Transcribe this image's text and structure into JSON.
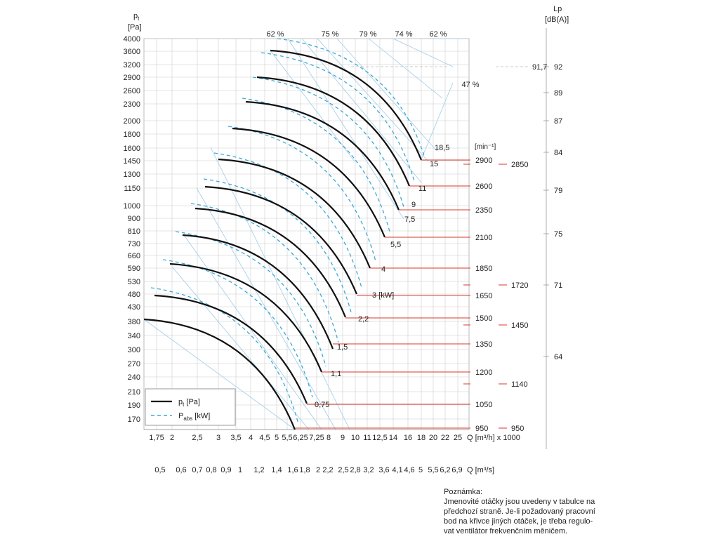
{
  "chart_data": {
    "type": "line",
    "y_axis": {
      "title_main": "p",
      "title_sub": "t",
      "unit": "[Pa]",
      "ticks": [
        4000,
        3600,
        3200,
        2900,
        2600,
        2300,
        2000,
        1800,
        1600,
        1450,
        1300,
        1150,
        1000,
        900,
        810,
        730,
        660,
        590,
        530,
        480,
        430,
        380,
        340,
        300,
        270,
        240,
        210,
        190,
        170
      ]
    },
    "x_axis_flow": {
      "label": "Q [m³/h] x 1000",
      "ticks": [
        "1,75",
        "2",
        "2,5",
        "3",
        "3,5",
        "4",
        "4,5",
        "5",
        "5,5",
        "6,25",
        "7,25",
        "8",
        "9",
        "10",
        "11",
        "12,5",
        "14",
        "16",
        "18",
        "20",
        "22",
        "25"
      ]
    },
    "x_axis_flow_s": {
      "label": "Q [m³/s]",
      "ticks": [
        "0,5",
        "0,6",
        "0,7",
        "0,8",
        "0,9",
        "1",
        "1,2",
        "1,4",
        "1,6",
        "1,8",
        "2",
        "2,2",
        "2,5",
        "2,8",
        "3,2",
        "3,6",
        "4,1",
        "4,6",
        "5",
        "5,5",
        "6,2",
        "6,9"
      ]
    },
    "efficiency_lines": [
      "62 %",
      "75 %",
      "79 %",
      "74 %",
      "62 %",
      "47 %"
    ],
    "speed_axis": {
      "unit": "[min⁻¹]",
      "nominal": [
        "2900",
        "2600",
        "2350",
        "2100",
        "1850",
        "1650",
        "1500",
        "1350",
        "1200",
        "1050",
        "950"
      ],
      "other": [
        "2850",
        "1720",
        "1450",
        "1140",
        "950"
      ]
    },
    "power_labels": [
      "18,5",
      "15",
      "11",
      "9",
      "7,5",
      "5,5",
      "4",
      "3 [kW]",
      "2,2",
      "1,5",
      "1,1",
      "0,75"
    ],
    "lp_axis": {
      "title": "Lp",
      "unit": "[dB(A)]",
      "ticks": [
        "92",
        "89",
        "87",
        "84",
        "79",
        "75",
        "71",
        "64"
      ],
      "marker": "91,7"
    },
    "legend": {
      "pt_main": "p",
      "pt_sub": "t",
      "pt_unit": " [Pa]",
      "pabs_main": "P",
      "pabs_sub": "abs",
      "pabs_unit": " [kW]"
    },
    "colors": {
      "curve": "#111111",
      "power": "#3aa9d8",
      "speed": "#d9372b",
      "grid": "#cccccc",
      "diag": "#9fcbe8"
    }
  },
  "note": {
    "title": "Poznámka:",
    "lines": [
      "Jmenovité otáčky jsou uvedeny v tabulce na",
      "předchozí straně. Je-li požadovaný pracovní",
      "bod na křivce jiných otáček, je třeba regulo-",
      "vat ventilátor frekvenčním měničem."
    ]
  }
}
